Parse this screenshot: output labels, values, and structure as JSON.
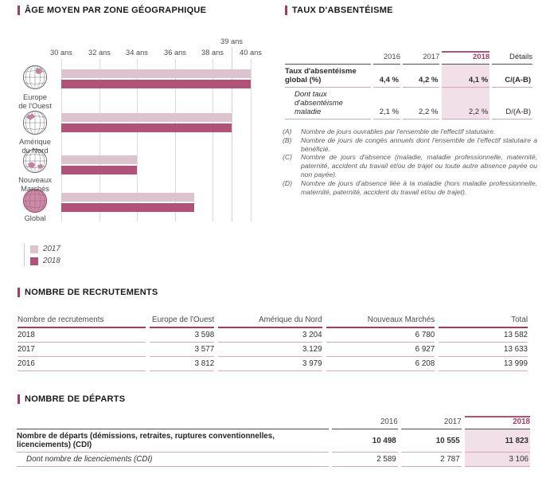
{
  "titles": {
    "age_chart": "ÂGE MOYEN PAR ZONE GÉOGRAPHIQUE",
    "absenteeism": "TAUX D'ABSENTÉISME",
    "recruitments": "NOMBRE DE RECRUTEMENTS",
    "departures": "NOMBRE DE DÉPARTS"
  },
  "chart_data": {
    "type": "bar",
    "orientation": "horizontal",
    "title": "ÂGE MOYEN PAR ZONE GÉOGRAPHIQUE",
    "categories": [
      "Europe de l'Ouest",
      "Amérique du Nord",
      "Nouveaux Marchés",
      "Global"
    ],
    "series": [
      {
        "name": "2017",
        "color": "#ddc3ce",
        "values": [
          40,
          39,
          34,
          37
        ]
      },
      {
        "name": "2018",
        "color": "#b25278",
        "values": [
          40,
          39,
          34,
          37
        ]
      }
    ],
    "xlim": [
      30,
      40
    ],
    "xticks": [
      30,
      32,
      34,
      36,
      38,
      40
    ],
    "extra_xtick": 39,
    "tick_suffix": " ans",
    "grid": true,
    "legend_position": "bottom-left"
  },
  "age_chart": {
    "tick_labels": [
      "30 ans",
      "32 ans",
      "34 ans",
      "36 ans",
      "38 ans",
      "40 ans"
    ],
    "callout_tick_label": "39 ans",
    "categories": [
      {
        "label_lines": [
          "Europe",
          "de l'Ouest"
        ],
        "globe": "europe"
      },
      {
        "label_lines": [
          "Amérique",
          "du Nord"
        ],
        "globe": "north-america"
      },
      {
        "label_lines": [
          "Nouveaux",
          "Marchés"
        ],
        "globe": "new-markets"
      },
      {
        "label_lines": [
          "Global",
          ""
        ],
        "globe": "global"
      }
    ]
  },
  "absenteeism": {
    "columns": [
      "2016",
      "2017",
      "2018",
      "Détails"
    ],
    "rows": [
      {
        "label": "Taux d'absentéisme global (%)",
        "values": [
          "4,4 %",
          "4,2 %",
          "4,1 %"
        ],
        "details": "C/(A-B)"
      },
      {
        "label": "Dont taux d'absentéisme maladie",
        "values": [
          "2,1 %",
          "2,2 %",
          "2,2 %"
        ],
        "details": "D/(A-B)"
      }
    ],
    "footnotes": [
      {
        "marker": "(A)",
        "text": "Nombre de jours ouvrables par l'ensemble de l'effectif statutaire."
      },
      {
        "marker": "(B)",
        "text": "Nombre de jours de congés annuels dont l'ensemble de l'effectif statutaire a bénéficié."
      },
      {
        "marker": "(C)",
        "text": "Nombre de jours d'absence (maladie, maladie professionnelle, maternité, paternité, accident du travail et/ou de trajet ou toute autre absence payée ou non payée)."
      },
      {
        "marker": "(D)",
        "text": "Nombre de jours d'absence liée à la maladie (hors maladie professionnelle, maternité, paternité, accident du travail et/ou de trajet)."
      }
    ]
  },
  "recruitments": {
    "columns": [
      "Nombre de recrutements",
      "Europe de l'Ouest",
      "Amérique du Nord",
      "Nouveaux Marchés",
      "Total"
    ],
    "rows": [
      {
        "year": "2018",
        "values": [
          "3 598",
          "3 204",
          "6 780",
          "13 582"
        ]
      },
      {
        "year": "2017",
        "values": [
          "3 577",
          "3.129",
          "6 927",
          "13 633"
        ]
      },
      {
        "year": "2016",
        "values": [
          "3 812",
          "3 979",
          "6 208",
          "13 999"
        ]
      }
    ]
  },
  "departures": {
    "columns": [
      "2016",
      "2017",
      "2018"
    ],
    "rows": [
      {
        "label": "Nombre de départs (démissions, retraites, ruptures conventionnelles, licenciements) (CDI)",
        "values": [
          "10 498",
          "10 555",
          "11 823"
        ]
      },
      {
        "label": "Dont nombre de licenciements (CDI)",
        "values": [
          "2 589",
          "2 787",
          "3 106"
        ]
      }
    ]
  },
  "colors": {
    "accent": "#a23c66",
    "bar_2017": "#ddc3ce",
    "bar_2018": "#b25278",
    "highlight_2018_bg": "#f2e0e8",
    "row_line": "#d9a3b9",
    "header_dark_line": "#4f4f51"
  }
}
